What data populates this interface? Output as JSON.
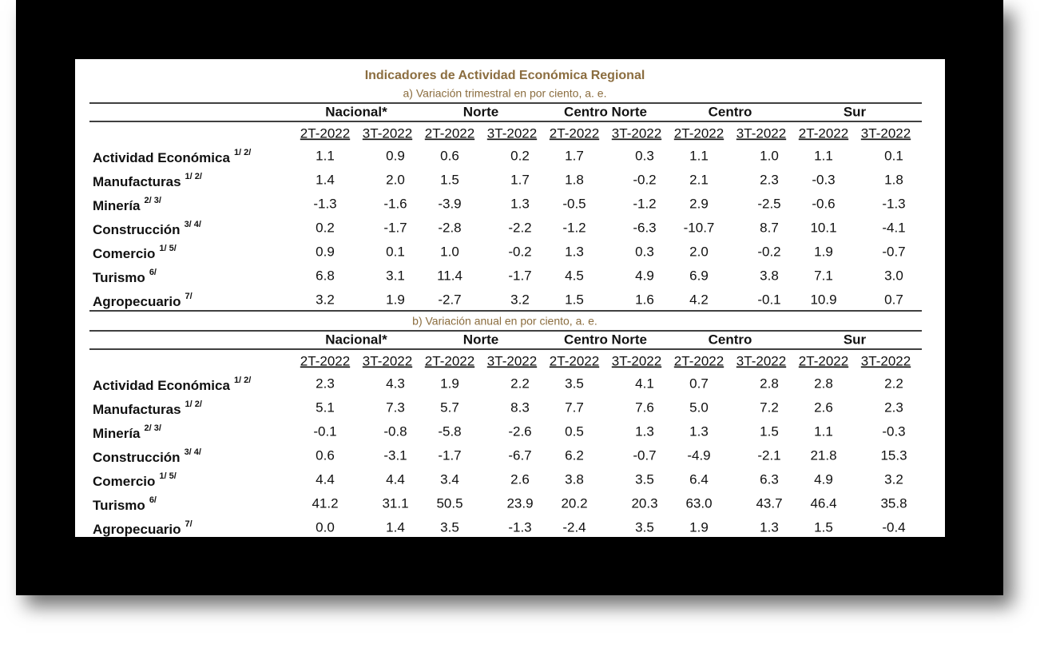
{
  "title": "Indicadores de Actividad Económica Regional",
  "sections": [
    {
      "subtitle": "a) Variación trimestral en por ciento, a. e.",
      "regions": [
        "Nacional*",
        "Norte",
        "Centro Norte",
        "Centro",
        "Sur"
      ],
      "periods": [
        "2T-2022",
        "3T-2022",
        "2T-2022",
        "3T-2022",
        "2T-2022",
        "3T-2022",
        "2T-2022",
        "3T-2022",
        "2T-2022",
        "3T-2022"
      ],
      "rows": [
        {
          "label": "Actividad Económica",
          "note": "1/ 2/",
          "values": [
            "1.1",
            "0.9",
            "0.6",
            "0.2",
            "1.7",
            "0.3",
            "1.1",
            "1.0",
            "1.1",
            "0.1"
          ]
        },
        {
          "label": "Manufacturas",
          "note": "1/ 2/",
          "values": [
            "1.4",
            "2.0",
            "1.5",
            "1.7",
            "1.8",
            "-0.2",
            "2.1",
            "2.3",
            "-0.3",
            "1.8"
          ]
        },
        {
          "label": "Minería",
          "note": "2/ 3/",
          "values": [
            "-1.3",
            "-1.6",
            "-3.9",
            "1.3",
            "-0.5",
            "-1.2",
            "2.9",
            "-2.5",
            "-0.6",
            "-1.3"
          ]
        },
        {
          "label": "Construcción",
          "note": "3/ 4/",
          "values": [
            "0.2",
            "-1.7",
            "-2.8",
            "-2.2",
            "-1.2",
            "-6.3",
            "-10.7",
            "8.7",
            "10.1",
            "-4.1"
          ]
        },
        {
          "label": "Comercio",
          "note": "1/ 5/",
          "values": [
            "0.9",
            "0.1",
            "1.0",
            "-0.2",
            "1.3",
            "0.3",
            "2.0",
            "-0.2",
            "1.9",
            "-0.7"
          ]
        },
        {
          "label": "Turismo",
          "note": "6/",
          "values": [
            "6.8",
            "3.1",
            "11.4",
            "-1.7",
            "4.5",
            "4.9",
            "6.9",
            "3.8",
            "7.1",
            "3.0"
          ]
        },
        {
          "label": "Agropecuario",
          "note": "7/",
          "values": [
            "3.2",
            "1.9",
            "-2.7",
            "3.2",
            "1.5",
            "1.6",
            "4.2",
            "-0.1",
            "10.9",
            "0.7"
          ]
        }
      ]
    },
    {
      "subtitle": "b) Variación anual en por ciento, a. e.",
      "regions": [
        "Nacional*",
        "Norte",
        "Centro Norte",
        "Centro",
        "Sur"
      ],
      "periods": [
        "2T-2022",
        "3T-2022",
        "2T-2022",
        "3T-2022",
        "2T-2022",
        "3T-2022",
        "2T-2022",
        "3T-2022",
        "2T-2022",
        "3T-2022"
      ],
      "rows": [
        {
          "label": "Actividad Económica",
          "note": "1/ 2/",
          "values": [
            "2.3",
            "4.3",
            "1.9",
            "2.2",
            "3.5",
            "4.1",
            "0.7",
            "2.8",
            "2.8",
            "2.2"
          ]
        },
        {
          "label": "Manufacturas",
          "note": "1/ 2/",
          "values": [
            "5.1",
            "7.3",
            "5.7",
            "8.3",
            "7.7",
            "7.6",
            "5.0",
            "7.2",
            "2.6",
            "2.3"
          ]
        },
        {
          "label": "Minería",
          "note": "2/ 3/",
          "values": [
            "-0.1",
            "-0.8",
            "-5.8",
            "-2.6",
            "0.5",
            "1.3",
            "1.3",
            "1.5",
            "1.1",
            "-0.3"
          ]
        },
        {
          "label": "Construcción",
          "note": "3/ 4/",
          "values": [
            "0.6",
            "-3.1",
            "-1.7",
            "-6.7",
            "6.2",
            "-0.7",
            "-4.9",
            "-2.1",
            "21.8",
            "15.3"
          ]
        },
        {
          "label": "Comercio",
          "note": "1/ 5/",
          "values": [
            "4.4",
            "4.4",
            "3.4",
            "2.6",
            "3.8",
            "3.5",
            "6.4",
            "6.3",
            "4.9",
            "3.2"
          ]
        },
        {
          "label": "Turismo",
          "note": "6/",
          "values": [
            "41.2",
            "31.1",
            "50.5",
            "23.9",
            "20.2",
            "20.3",
            "63.0",
            "43.7",
            "46.4",
            "35.8"
          ]
        },
        {
          "label": "Agropecuario",
          "note": "7/",
          "values": [
            "0.0",
            "1.4",
            "3.5",
            "-1.3",
            "-2.4",
            "3.5",
            "1.9",
            "1.3",
            "1.5",
            "-0.4"
          ]
        }
      ]
    }
  ]
}
